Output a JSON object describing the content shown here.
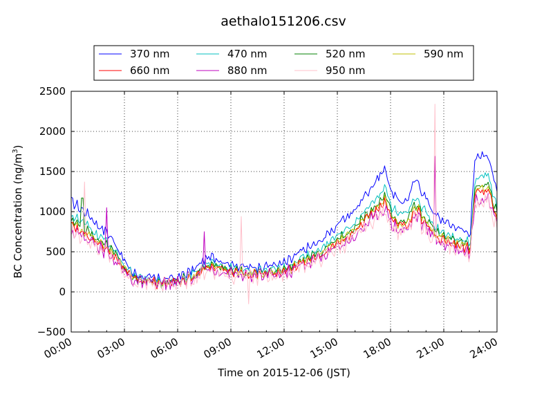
{
  "chart_data": {
    "type": "line",
    "title": "aethalo151206.csv",
    "xlabel": "Time on 2015-12-06 (JST)",
    "ylabel": "BC Concentration (ng/m³)",
    "ylabel_main": "BC Concentration (ng/m",
    "ylabel_sup": "3",
    "ylabel_tail": ")",
    "x_unit": "hours",
    "xlim": [
      0,
      24
    ],
    "ylim": [
      -500,
      2500
    ],
    "x_ticks": [
      0,
      3,
      6,
      9,
      12,
      15,
      18,
      21,
      24
    ],
    "x_tick_labels": [
      "00:00",
      "03:00",
      "06:00",
      "09:00",
      "12:00",
      "15:00",
      "18:00",
      "21:00",
      "24:00"
    ],
    "y_ticks": [
      -500,
      0,
      500,
      1000,
      1500,
      2000,
      2500
    ],
    "y_tick_labels": [
      "−500",
      "0",
      "500",
      "1000",
      "1500",
      "2000",
      "2500"
    ],
    "grid": true,
    "legend_position": "top",
    "legend_columns": 4,
    "knots": {
      "t": [
        0,
        0.5,
        1,
        1.5,
        2,
        2.5,
        3,
        3.5,
        4,
        4.5,
        5,
        5.5,
        6,
        6.5,
        7,
        7.5,
        8,
        8.5,
        9,
        9.5,
        10,
        10.5,
        11,
        11.5,
        12,
        12.5,
        13,
        13.5,
        14,
        14.5,
        15,
        15.5,
        16,
        16.5,
        17,
        17.5,
        17.75,
        18,
        18.5,
        19,
        19.25,
        19.5,
        19.75,
        20,
        20.5,
        21,
        21.5,
        22,
        22.5,
        22.75,
        23,
        23.5,
        23.75,
        24
      ],
      "v": [
        850,
        780,
        720,
        620,
        560,
        450,
        280,
        170,
        140,
        120,
        110,
        120,
        130,
        170,
        210,
        300,
        320,
        290,
        260,
        240,
        220,
        230,
        240,
        250,
        260,
        310,
        380,
        420,
        460,
        550,
        620,
        700,
        760,
        900,
        1000,
        1120,
        1150,
        950,
        840,
        870,
        1000,
        1050,
        950,
        880,
        720,
        660,
        620,
        580,
        560,
        1230,
        1280,
        1300,
        1100,
        930
      ]
    },
    "series": [
      {
        "name": "370 nm",
        "color": "#0000ff",
        "scale": 1.32,
        "noise": 45,
        "offset": 10
      },
      {
        "name": "470 nm",
        "color": "#00bfbf",
        "scale": 1.12,
        "noise": 40,
        "offset": 5
      },
      {
        "name": "520 nm",
        "color": "#008000",
        "scale": 1.04,
        "noise": 40,
        "offset": 0
      },
      {
        "name": "590 nm",
        "color": "#bfbf00",
        "scale": 1.0,
        "noise": 40,
        "offset": 0
      },
      {
        "name": "660 nm",
        "color": "#ff0000",
        "scale": 0.97,
        "noise": 45,
        "offset": 0
      },
      {
        "name": "880 nm",
        "color": "#bf00bf",
        "scale": 0.92,
        "noise": 70,
        "offset": -10
      },
      {
        "name": "950 nm",
        "color": "#ffc0cb",
        "scale": 0.9,
        "noise": 90,
        "offset": -15
      }
    ],
    "spikes": [
      {
        "series": "950 nm",
        "x": 20.47,
        "y": 2340
      },
      {
        "series": "880 nm",
        "x": 20.47,
        "y": 1690
      },
      {
        "series": "950 nm",
        "x": 0.75,
        "y": 1370
      },
      {
        "series": "520 nm",
        "x": 0.62,
        "y": 1170
      },
      {
        "series": "880 nm",
        "x": 2.0,
        "y": 1050
      },
      {
        "series": "950 nm",
        "x": 9.6,
        "y": 940
      },
      {
        "series": "880 nm",
        "x": 7.5,
        "y": 750
      },
      {
        "series": "950 nm",
        "x": 10.0,
        "y": -150
      }
    ]
  }
}
